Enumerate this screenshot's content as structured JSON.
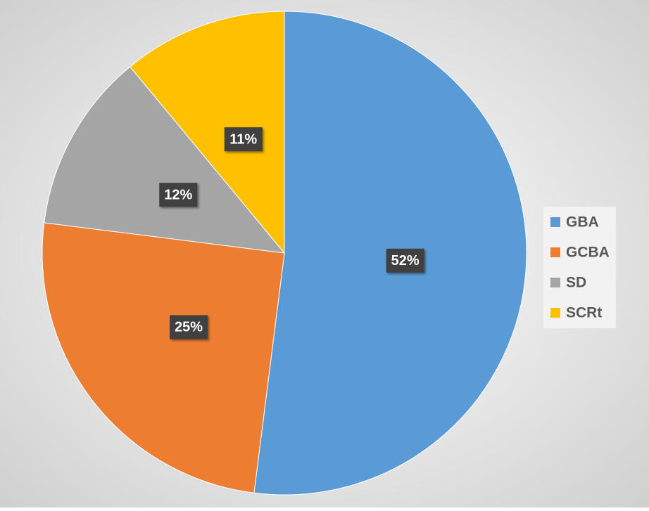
{
  "chart_data": {
    "type": "pie",
    "categories": [
      "GBA",
      "GCBA",
      "SD",
      "SCRt"
    ],
    "values": [
      52,
      25,
      12,
      11
    ],
    "value_labels": [
      "52%",
      "25%",
      "12%",
      "11%"
    ],
    "colors": [
      "#5b9bd5",
      "#ed7d31",
      "#a5a5a5",
      "#ffc000"
    ],
    "legend": "right"
  }
}
